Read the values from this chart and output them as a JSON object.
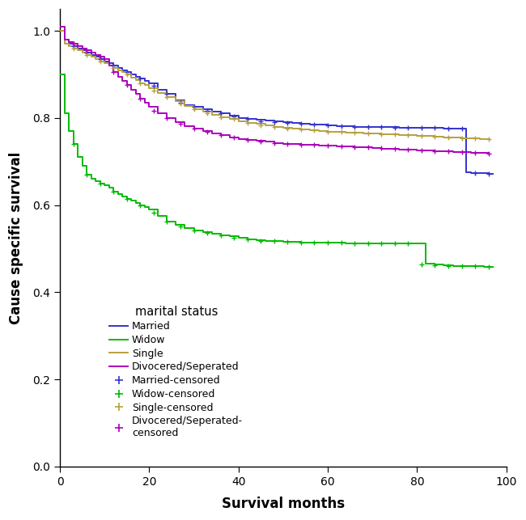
{
  "xlabel": "Survival months",
  "ylabel": "Cause specific survival",
  "xlim": [
    0,
    100
  ],
  "ylim": [
    0.0,
    1.05
  ],
  "xticks": [
    0,
    20,
    40,
    60,
    80,
    100
  ],
  "yticks": [
    0.0,
    0.2,
    0.4,
    0.6,
    0.8,
    1.0
  ],
  "colors": {
    "married": "#3333cc",
    "widow": "#00bb00",
    "single": "#b8a040",
    "divorced": "#aa00bb"
  },
  "married_curve": {
    "x": [
      0,
      1,
      2,
      3,
      4,
      5,
      6,
      7,
      8,
      9,
      10,
      11,
      12,
      13,
      14,
      15,
      16,
      17,
      18,
      19,
      20,
      22,
      24,
      26,
      28,
      30,
      32,
      34,
      36,
      38,
      40,
      42,
      44,
      46,
      48,
      50,
      52,
      54,
      56,
      58,
      60,
      62,
      64,
      66,
      68,
      70,
      72,
      74,
      76,
      78,
      80,
      82,
      84,
      86,
      88,
      90,
      91,
      92,
      94,
      96,
      97
    ],
    "y": [
      1.0,
      0.98,
      0.97,
      0.965,
      0.96,
      0.955,
      0.95,
      0.945,
      0.94,
      0.935,
      0.93,
      0.925,
      0.92,
      0.915,
      0.91,
      0.905,
      0.9,
      0.895,
      0.89,
      0.885,
      0.88,
      0.865,
      0.855,
      0.84,
      0.83,
      0.825,
      0.82,
      0.815,
      0.81,
      0.805,
      0.8,
      0.798,
      0.796,
      0.794,
      0.792,
      0.79,
      0.788,
      0.786,
      0.785,
      0.784,
      0.783,
      0.782,
      0.781,
      0.78,
      0.78,
      0.779,
      0.779,
      0.779,
      0.778,
      0.778,
      0.777,
      0.777,
      0.777,
      0.776,
      0.776,
      0.775,
      0.675,
      0.674,
      0.673,
      0.672,
      0.672
    ]
  },
  "widow_curve": {
    "x": [
      0,
      1,
      2,
      3,
      4,
      5,
      6,
      7,
      8,
      9,
      10,
      11,
      12,
      13,
      14,
      15,
      16,
      17,
      18,
      19,
      20,
      22,
      24,
      26,
      28,
      30,
      32,
      34,
      36,
      38,
      40,
      42,
      44,
      46,
      48,
      50,
      52,
      54,
      56,
      58,
      60,
      62,
      64,
      66,
      68,
      70,
      72,
      74,
      76,
      78,
      80,
      81,
      82,
      84,
      86,
      88,
      90,
      92,
      95,
      97
    ],
    "y": [
      0.9,
      0.81,
      0.77,
      0.74,
      0.71,
      0.69,
      0.67,
      0.66,
      0.655,
      0.65,
      0.645,
      0.64,
      0.63,
      0.625,
      0.62,
      0.615,
      0.61,
      0.605,
      0.6,
      0.595,
      0.59,
      0.575,
      0.562,
      0.555,
      0.548,
      0.542,
      0.538,
      0.534,
      0.531,
      0.528,
      0.525,
      0.522,
      0.519,
      0.518,
      0.517,
      0.516,
      0.515,
      0.514,
      0.514,
      0.514,
      0.514,
      0.514,
      0.513,
      0.513,
      0.513,
      0.513,
      0.513,
      0.513,
      0.513,
      0.513,
      0.513,
      0.513,
      0.465,
      0.463,
      0.462,
      0.461,
      0.461,
      0.46,
      0.459,
      0.459
    ]
  },
  "single_curve": {
    "x": [
      0,
      1,
      2,
      3,
      4,
      5,
      6,
      7,
      8,
      9,
      10,
      11,
      12,
      13,
      14,
      15,
      16,
      17,
      18,
      19,
      20,
      22,
      24,
      26,
      28,
      30,
      32,
      34,
      36,
      38,
      40,
      42,
      44,
      46,
      48,
      50,
      52,
      54,
      56,
      58,
      60,
      62,
      64,
      66,
      68,
      70,
      72,
      74,
      76,
      78,
      80,
      82,
      84,
      86,
      88,
      90,
      92,
      94,
      96
    ],
    "y": [
      1.0,
      0.97,
      0.965,
      0.96,
      0.955,
      0.95,
      0.945,
      0.94,
      0.935,
      0.93,
      0.925,
      0.92,
      0.915,
      0.91,
      0.905,
      0.9,
      0.893,
      0.886,
      0.88,
      0.875,
      0.869,
      0.858,
      0.848,
      0.838,
      0.828,
      0.82,
      0.814,
      0.808,
      0.802,
      0.797,
      0.792,
      0.789,
      0.786,
      0.783,
      0.78,
      0.777,
      0.775,
      0.773,
      0.771,
      0.77,
      0.769,
      0.768,
      0.767,
      0.766,
      0.765,
      0.764,
      0.763,
      0.762,
      0.761,
      0.76,
      0.759,
      0.758,
      0.757,
      0.756,
      0.755,
      0.754,
      0.753,
      0.752,
      0.751
    ]
  },
  "divorced_curve": {
    "x": [
      0,
      1,
      2,
      3,
      4,
      5,
      6,
      7,
      8,
      9,
      10,
      11,
      12,
      13,
      14,
      15,
      16,
      17,
      18,
      19,
      20,
      22,
      24,
      26,
      28,
      30,
      32,
      34,
      36,
      38,
      40,
      42,
      44,
      46,
      48,
      50,
      52,
      54,
      56,
      58,
      60,
      62,
      64,
      66,
      68,
      70,
      72,
      74,
      76,
      78,
      80,
      82,
      84,
      86,
      88,
      90,
      92,
      94,
      96
    ],
    "y": [
      1.01,
      0.98,
      0.975,
      0.97,
      0.965,
      0.96,
      0.955,
      0.95,
      0.945,
      0.94,
      0.935,
      0.92,
      0.905,
      0.895,
      0.885,
      0.875,
      0.865,
      0.855,
      0.845,
      0.835,
      0.825,
      0.81,
      0.8,
      0.79,
      0.782,
      0.775,
      0.77,
      0.765,
      0.76,
      0.756,
      0.752,
      0.749,
      0.747,
      0.745,
      0.743,
      0.741,
      0.74,
      0.739,
      0.738,
      0.737,
      0.736,
      0.735,
      0.734,
      0.733,
      0.732,
      0.731,
      0.73,
      0.729,
      0.728,
      0.727,
      0.726,
      0.725,
      0.724,
      0.723,
      0.722,
      0.721,
      0.72,
      0.719,
      0.718
    ]
  },
  "married_censored_x": [
    3,
    6,
    9,
    12,
    15,
    18,
    21,
    24,
    27,
    30,
    33,
    36,
    39,
    42,
    45,
    48,
    51,
    54,
    57,
    60,
    63,
    66,
    69,
    72,
    75,
    78,
    81,
    84,
    87,
    90,
    93,
    96
  ],
  "married_censored_y": [
    0.965,
    0.95,
    0.935,
    0.92,
    0.905,
    0.89,
    0.873,
    0.855,
    0.835,
    0.825,
    0.817,
    0.81,
    0.803,
    0.798,
    0.793,
    0.79,
    0.788,
    0.786,
    0.785,
    0.783,
    0.782,
    0.78,
    0.78,
    0.779,
    0.778,
    0.778,
    0.777,
    0.777,
    0.776,
    0.776,
    0.673,
    0.672
  ],
  "widow_censored_x": [
    3,
    6,
    9,
    12,
    15,
    18,
    21,
    24,
    27,
    30,
    33,
    36,
    39,
    42,
    45,
    48,
    51,
    54,
    57,
    60,
    63,
    66,
    69,
    72,
    75,
    78,
    81,
    84,
    87,
    90,
    93,
    96
  ],
  "widow_censored_y": [
    0.74,
    0.67,
    0.65,
    0.63,
    0.615,
    0.6,
    0.582,
    0.562,
    0.551,
    0.542,
    0.536,
    0.53,
    0.526,
    0.522,
    0.518,
    0.517,
    0.516,
    0.514,
    0.514,
    0.514,
    0.514,
    0.513,
    0.513,
    0.513,
    0.513,
    0.513,
    0.463,
    0.462,
    0.461,
    0.461,
    0.46,
    0.459
  ],
  "single_censored_x": [
    3,
    6,
    9,
    12,
    15,
    18,
    21,
    24,
    27,
    30,
    33,
    36,
    39,
    42,
    45,
    48,
    51,
    54,
    57,
    60,
    63,
    66,
    69,
    72,
    75,
    78,
    81,
    84,
    87,
    90,
    93,
    96
  ],
  "single_censored_y": [
    0.96,
    0.945,
    0.93,
    0.915,
    0.9,
    0.88,
    0.863,
    0.848,
    0.833,
    0.82,
    0.811,
    0.802,
    0.797,
    0.789,
    0.783,
    0.78,
    0.776,
    0.773,
    0.771,
    0.769,
    0.768,
    0.766,
    0.765,
    0.763,
    0.762,
    0.76,
    0.759,
    0.757,
    0.756,
    0.754,
    0.753,
    0.751
  ],
  "divorced_censored_x": [
    3,
    6,
    9,
    12,
    15,
    18,
    21,
    24,
    27,
    30,
    33,
    36,
    39,
    42,
    45,
    48,
    51,
    54,
    57,
    60,
    63,
    66,
    69,
    72,
    75,
    78,
    81,
    84,
    87,
    90,
    93,
    96
  ],
  "divorced_censored_y": [
    0.97,
    0.955,
    0.94,
    0.905,
    0.875,
    0.845,
    0.817,
    0.8,
    0.786,
    0.775,
    0.768,
    0.76,
    0.756,
    0.749,
    0.745,
    0.743,
    0.74,
    0.739,
    0.738,
    0.736,
    0.735,
    0.733,
    0.732,
    0.731,
    0.729,
    0.727,
    0.725,
    0.724,
    0.723,
    0.721,
    0.72,
    0.718
  ],
  "legend_title": "marital status",
  "legend_labels": [
    "Married",
    "Widow",
    "Single",
    "Divocered/Seperated",
    "Married-censored",
    "Widow-censored",
    "Single-censored",
    "Divocered/Seperated-\ncensored"
  ]
}
